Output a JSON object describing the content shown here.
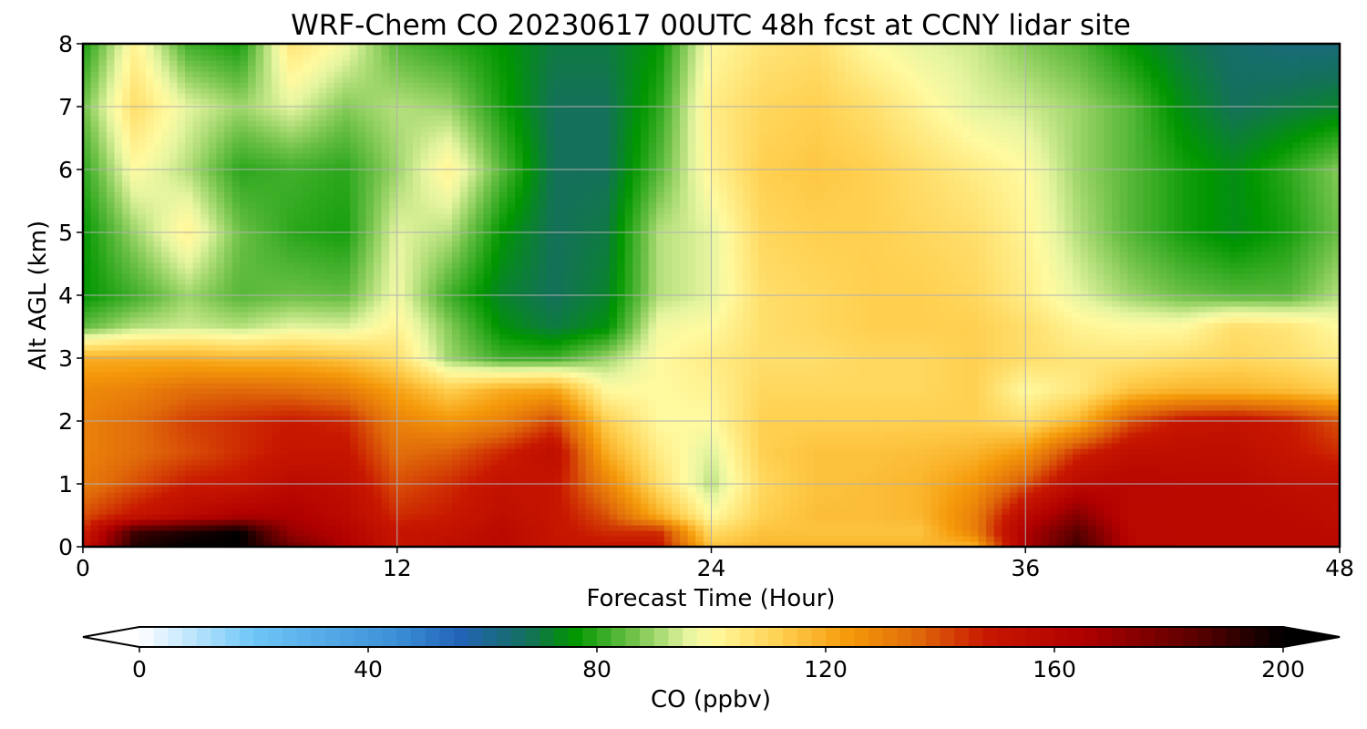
{
  "chart_data": {
    "type": "heatmap",
    "title": "WRF-Chem CO  20230617 00UTC 48h fcst at CCNY lidar site",
    "xlabel": "Forecast Time (Hour)",
    "ylabel": "Alt AGL (km)",
    "xlim": [
      0,
      48
    ],
    "ylim": [
      0,
      8
    ],
    "xticks": [
      0,
      12,
      24,
      36,
      48
    ],
    "yticks": [
      0,
      1,
      2,
      3,
      4,
      5,
      6,
      7,
      8
    ],
    "grid": true,
    "x": [
      0,
      2,
      4,
      6,
      8,
      10,
      12,
      14,
      16,
      18,
      20,
      22,
      24,
      26,
      28,
      30,
      32,
      34,
      36,
      38,
      40,
      42,
      44,
      46,
      48
    ],
    "y": [
      0,
      0.25,
      0.5,
      1,
      1.5,
      2,
      2.5,
      3,
      3.5,
      4,
      5,
      6,
      7,
      8
    ],
    "z": [
      [
        152,
        195,
        200,
        200,
        180,
        165,
        150,
        155,
        158,
        150,
        150,
        150,
        115,
        118,
        118,
        118,
        118,
        118,
        165,
        190,
        160,
        158,
        158,
        158,
        158
      ],
      [
        145,
        190,
        195,
        200,
        170,
        162,
        150,
        152,
        158,
        150,
        145,
        145,
        108,
        115,
        115,
        115,
        115,
        130,
        165,
        185,
        160,
        158,
        158,
        158,
        158
      ],
      [
        140,
        150,
        158,
        165,
        165,
        158,
        145,
        148,
        155,
        150,
        140,
        120,
        100,
        112,
        116,
        116,
        118,
        130,
        158,
        175,
        158,
        158,
        158,
        158,
        155
      ],
      [
        132,
        140,
        148,
        150,
        158,
        155,
        140,
        145,
        152,
        150,
        130,
        108,
        92,
        110,
        115,
        116,
        118,
        125,
        140,
        158,
        160,
        158,
        158,
        155,
        155
      ],
      [
        130,
        135,
        140,
        145,
        150,
        150,
        135,
        138,
        146,
        155,
        120,
        104,
        95,
        112,
        115,
        115,
        116,
        118,
        125,
        145,
        155,
        155,
        155,
        150,
        145
      ],
      [
        130,
        135,
        142,
        145,
        148,
        146,
        130,
        125,
        130,
        142,
        112,
        100,
        100,
        112,
        112,
        112,
        112,
        112,
        108,
        118,
        140,
        150,
        152,
        148,
        140
      ],
      [
        128,
        130,
        135,
        136,
        135,
        132,
        122,
        112,
        120,
        122,
        100,
        100,
        102,
        110,
        110,
        110,
        110,
        112,
        100,
        105,
        115,
        118,
        118,
        116,
        112
      ],
      [
        120,
        120,
        120,
        118,
        118,
        115,
        108,
        90,
        82,
        82,
        90,
        100,
        104,
        108,
        108,
        110,
        110,
        112,
        108,
        106,
        106,
        108,
        110,
        108,
        104
      ],
      [
        85,
        92,
        94,
        92,
        96,
        95,
        102,
        88,
        75,
        70,
        75,
        98,
        100,
        108,
        110,
        112,
        112,
        112,
        108,
        102,
        100,
        100,
        108,
        106,
        100
      ],
      [
        76,
        82,
        90,
        84,
        86,
        85,
        98,
        82,
        72,
        68,
        72,
        92,
        96,
        108,
        110,
        112,
        112,
        110,
        104,
        96,
        90,
        86,
        84,
        84,
        92
      ],
      [
        76,
        90,
        102,
        86,
        80,
        78,
        96,
        92,
        76,
        68,
        70,
        92,
        96,
        110,
        112,
        112,
        110,
        108,
        102,
        92,
        84,
        78,
        74,
        78,
        86
      ],
      [
        80,
        100,
        92,
        80,
        82,
        80,
        90,
        102,
        84,
        68,
        68,
        84,
        102,
        112,
        114,
        112,
        108,
        104,
        100,
        90,
        84,
        78,
        74,
        80,
        88
      ],
      [
        86,
        108,
        96,
        90,
        96,
        88,
        92,
        90,
        78,
        68,
        68,
        80,
        104,
        110,
        112,
        108,
        102,
        96,
        94,
        90,
        84,
        74,
        68,
        70,
        72
      ],
      [
        78,
        102,
        82,
        78,
        106,
        98,
        84,
        80,
        76,
        70,
        70,
        76,
        100,
        106,
        108,
        100,
        96,
        94,
        88,
        84,
        76,
        70,
        66,
        64,
        64
      ]
    ],
    "colorbar": {
      "label": "CO  (ppbv)",
      "min": 0,
      "max": 200,
      "ticks": [
        0,
        40,
        80,
        120,
        160,
        200
      ],
      "extend": "both",
      "colors": [
        {
          "v": 0,
          "c": "#ffffff"
        },
        {
          "v": 20,
          "c": "#6ec6f7"
        },
        {
          "v": 45,
          "c": "#3b8fd6"
        },
        {
          "v": 56,
          "c": "#2363b8"
        },
        {
          "v": 68,
          "c": "#14705a"
        },
        {
          "v": 76,
          "c": "#009600"
        },
        {
          "v": 86,
          "c": "#6cc046"
        },
        {
          "v": 96,
          "c": "#e6f5a0"
        },
        {
          "v": 100,
          "c": "#fffaa0"
        },
        {
          "v": 112,
          "c": "#ffd050"
        },
        {
          "v": 124,
          "c": "#f59a0a"
        },
        {
          "v": 136,
          "c": "#e06a0a"
        },
        {
          "v": 148,
          "c": "#c81800"
        },
        {
          "v": 165,
          "c": "#b00000"
        },
        {
          "v": 185,
          "c": "#5a0000"
        },
        {
          "v": 200,
          "c": "#000000"
        }
      ]
    }
  }
}
